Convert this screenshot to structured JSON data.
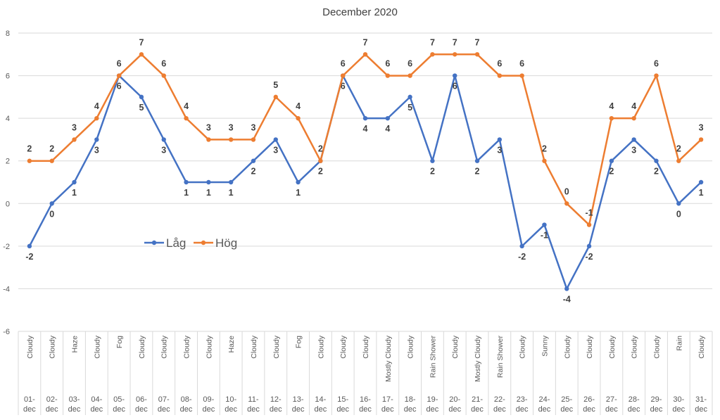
{
  "chart_data": {
    "type": "line",
    "title": "December 2020",
    "xlabel": "",
    "ylabel": "",
    "ylim": [
      -6,
      8
    ],
    "yticks": [
      -6,
      -4,
      -2,
      0,
      2,
      4,
      6,
      8
    ],
    "grid": true,
    "legend_position": "center-left",
    "categories": [
      "01-dec",
      "02-dec",
      "03-dec",
      "04-dec",
      "05-dec",
      "06-dec",
      "07-dec",
      "08-dec",
      "09-dec",
      "10-dec",
      "11-dec",
      "12-dec",
      "13-dec",
      "14-dec",
      "15-dec",
      "16-dec",
      "17-dec",
      "18-dec",
      "19-dec",
      "20-dec",
      "21-dec",
      "22-dec",
      "23-dec",
      "24-dec",
      "25-dec",
      "26-dec",
      "27-dec",
      "28-dec",
      "29-dec",
      "30-dec",
      "31-dec"
    ],
    "weather": [
      "Cloudy",
      "Cloudy",
      "Haze",
      "Cloudy",
      "Fog",
      "Cloudy",
      "Cloudy",
      "Cloudy",
      "Cloudy",
      "Haze",
      "Cloudy",
      "Cloudy",
      "Fog",
      "Cloudy",
      "Cloudy",
      "Cloudy",
      "Mostly Cloudy",
      "Cloudy",
      "Rain Shower",
      "Cloudy",
      "Mostly Cloudy",
      "Rain Shower",
      "Cloudy",
      "Sunny",
      "Cloudy",
      "Cloudy",
      "Cloudy",
      "Cloudy",
      "Cloudy",
      "Rain",
      "Cloudy"
    ],
    "series": [
      {
        "name": "Låg",
        "color": "#4472C4",
        "values": [
          -2,
          0,
          1,
          3,
          6,
          5,
          3,
          1,
          1,
          1,
          2,
          3,
          1,
          2,
          6,
          4,
          4,
          5,
          2,
          6,
          2,
          3,
          -2,
          -1,
          -4,
          -2,
          2,
          3,
          2,
          0,
          1
        ]
      },
      {
        "name": "Hög",
        "color": "#ED7D31",
        "values": [
          2,
          2,
          3,
          4,
          6,
          7,
          6,
          4,
          3,
          3,
          3,
          5,
          4,
          2,
          6,
          7,
          6,
          6,
          7,
          7,
          7,
          6,
          6,
          2,
          0,
          -1,
          4,
          4,
          6,
          2,
          3
        ]
      }
    ]
  }
}
